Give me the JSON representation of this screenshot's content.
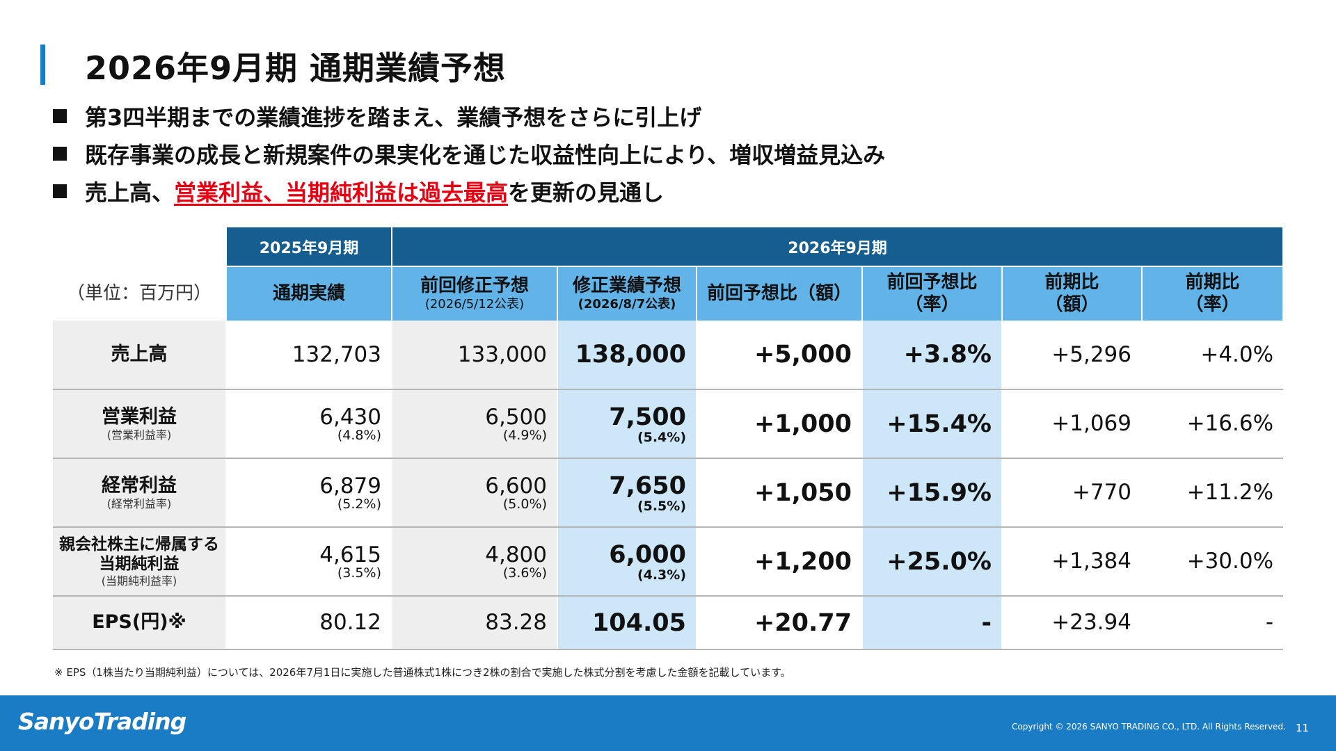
{
  "header": {
    "title": "2026年9月期 通期業績予想"
  },
  "bullets": [
    {
      "text": "第3四半期までの業績進捗を踏まえ、業績予想をさらに引上げ"
    },
    {
      "text": "既存事業の成長と新規案件の果実化を通じた収益性向上により、増収増益見込み"
    },
    {
      "pre": "売上高、",
      "highlight": "営業利益、当期純利益は過去最高",
      "post": "を更新の見通し"
    }
  ],
  "table": {
    "unit": "（単位：百万円）",
    "period_2025": "2025年9月期",
    "period_2026": "2026年9月期",
    "columns": {
      "actual": "通期実績",
      "prev_forecast": "前回修正予想",
      "prev_forecast_date": "(2026/5/12公表)",
      "revised_forecast": "修正業績予想",
      "revised_forecast_date": "(2026/8/7公表)",
      "vs_prev_amount": "前回予想比（額）",
      "vs_prev_rate_1": "前回予想比",
      "vs_prev_rate_2": "（率）",
      "yoy_amount_1": "前期比",
      "yoy_amount_2": "（額）",
      "yoy_rate_1": "前期比",
      "yoy_rate_2": "（率）"
    },
    "rows": [
      {
        "label": "売上高",
        "sub": "",
        "actual": "132,703",
        "actual_pct": "",
        "prev": "133,000",
        "prev_pct": "",
        "rev": "138,000",
        "rev_pct": "",
        "diff_amt": "+5,000",
        "diff_rate": "+3.8%",
        "yoy_amt": "+5,296",
        "yoy_rate": "+4.0%"
      },
      {
        "label": "営業利益",
        "sub": "(営業利益率)",
        "actual": "6,430",
        "actual_pct": "(4.8%)",
        "prev": "6,500",
        "prev_pct": "(4.9%)",
        "rev": "7,500",
        "rev_pct": "(5.4%)",
        "diff_amt": "+1,000",
        "diff_rate": "+15.4%",
        "yoy_amt": "+1,069",
        "yoy_rate": "+16.6%"
      },
      {
        "label": "経常利益",
        "sub": "(経常利益率)",
        "actual": "6,879",
        "actual_pct": "(5.2%)",
        "prev": "6,600",
        "prev_pct": "(5.0%)",
        "rev": "7,650",
        "rev_pct": "(5.5%)",
        "diff_amt": "+1,050",
        "diff_rate": "+15.9%",
        "yoy_amt": "+770",
        "yoy_rate": "+11.2%"
      },
      {
        "label": "親会社株主に帰属する当期純利益",
        "sub": "(当期純利益率)",
        "actual": "4,615",
        "actual_pct": "(3.5%)",
        "prev": "4,800",
        "prev_pct": "(3.6%)",
        "rev": "6,000",
        "rev_pct": "(4.3%)",
        "diff_amt": "+1,200",
        "diff_rate": "+25.0%",
        "yoy_amt": "+1,384",
        "yoy_rate": "+30.0%"
      },
      {
        "label": "EPS(円)※",
        "sub": "",
        "actual": "80.12",
        "actual_pct": "",
        "prev": "83.28",
        "prev_pct": "",
        "rev": "104.05",
        "rev_pct": "",
        "diff_amt": "+20.77",
        "diff_rate": "-",
        "yoy_amt": "+23.94",
        "yoy_rate": "-"
      }
    ]
  },
  "footnote": "※ EPS（1株当たり当期純利益）については、2026年7月1日に実施した普通株式1株につき2株の割合で実施した株式分割を考慮した金額を記載しています。",
  "footer": {
    "logo": "SanyoTrading",
    "copyright": "Copyright © 2026 SANYO TRADING CO., LTD. All Rights Reserved.",
    "page": "11"
  }
}
